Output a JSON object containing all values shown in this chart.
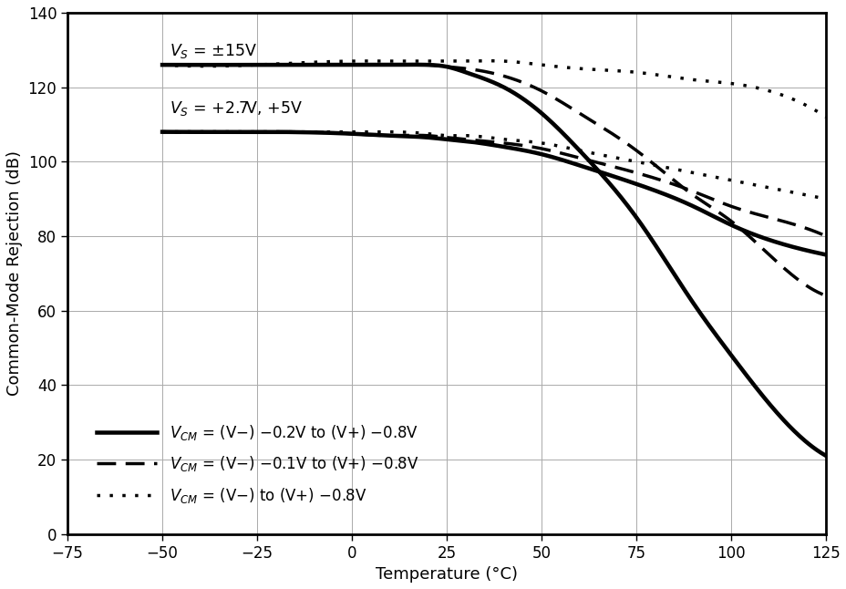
{
  "xlabel": "Temperature (°C)",
  "ylabel": "Common-Mode Rejection (dB)",
  "xlim": [
    -75,
    125
  ],
  "ylim": [
    0,
    140
  ],
  "xticks": [
    -75,
    -50,
    -25,
    0,
    25,
    50,
    75,
    100,
    125
  ],
  "yticks": [
    0,
    20,
    40,
    60,
    80,
    100,
    120,
    140
  ],
  "ann_15V_x": -48,
  "ann_15V_y": 128.5,
  "ann_27V_x": -48,
  "ann_27V_y": 113.0,
  "curves": {
    "solid_15V": {
      "x": [
        -50,
        -25,
        0,
        10,
        20,
        25,
        30,
        40,
        50,
        60,
        75,
        90,
        100,
        110,
        125
      ],
      "y": [
        126,
        126,
        126,
        126,
        126,
        125.5,
        124,
        120,
        113,
        103,
        85,
        62,
        48,
        35,
        21
      ]
    },
    "dashed_15V": {
      "x": [
        -50,
        -25,
        0,
        10,
        20,
        25,
        30,
        40,
        50,
        60,
        75,
        90,
        100,
        110,
        125
      ],
      "y": [
        126,
        126,
        126,
        126,
        126,
        125.5,
        125,
        123,
        119,
        113,
        103,
        91,
        84,
        75,
        64
      ]
    },
    "dotted_15V": {
      "x": [
        -50,
        -25,
        0,
        10,
        20,
        25,
        30,
        40,
        50,
        60,
        75,
        90,
        100,
        110,
        125
      ],
      "y": [
        126,
        126,
        127,
        127,
        127,
        127,
        127,
        127,
        126,
        125,
        124,
        122,
        121,
        119,
        112
      ]
    },
    "solid_low": {
      "x": [
        -50,
        -25,
        0,
        10,
        20,
        25,
        30,
        40,
        50,
        60,
        75,
        90,
        100,
        110,
        125
      ],
      "y": [
        108,
        108,
        107.5,
        107,
        106.5,
        106,
        105.5,
        104,
        102,
        99,
        94,
        88,
        83,
        79,
        75
      ]
    },
    "dashed_low": {
      "x": [
        -50,
        -25,
        0,
        10,
        20,
        25,
        30,
        40,
        50,
        60,
        75,
        90,
        100,
        110,
        125
      ],
      "y": [
        108,
        108,
        107.5,
        107,
        107,
        106.5,
        106,
        105,
        103.5,
        101,
        97,
        92,
        88,
        85,
        80
      ]
    },
    "dotted_low": {
      "x": [
        -50,
        -25,
        0,
        10,
        20,
        25,
        30,
        40,
        50,
        60,
        75,
        90,
        100,
        110,
        125
      ],
      "y": [
        108,
        108,
        108,
        108,
        107.5,
        107,
        107,
        106,
        105,
        103,
        100,
        97,
        95,
        93,
        90
      ]
    }
  },
  "legend_labels": [
    "$V_{CM}$ = (V−) −0.2V to (V+) −0.8V",
    "$V_{CM}$ = (V−) −0.1V to (V+) −0.8V",
    "$V_{CM}$ = (V−) to (V+) −0.8V"
  ],
  "linewidth": 2.5,
  "dot_density": 2.5
}
